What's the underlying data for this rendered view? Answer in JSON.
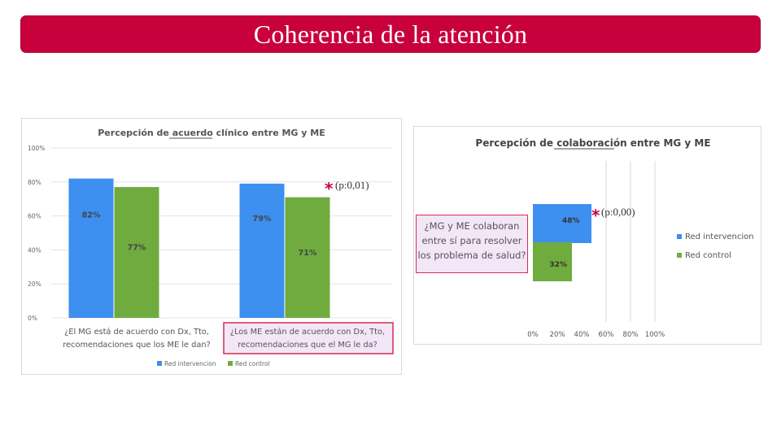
{
  "slide": {
    "title": "Coherencia de la atención"
  },
  "colors": {
    "title_bg": "#c8003c",
    "intervencion": "#3d8ff0",
    "control": "#6fab3e",
    "highlight_border": "#d32f4f",
    "highlight_fill": "#f3e6f7"
  },
  "annotations": {
    "left_star": "*",
    "left_p": "(p:0,01)",
    "right_star": "*",
    "right_p": "(p:0,00)"
  },
  "chart_data": [
    {
      "type": "bar",
      "title": "Percepción de acuerdo clínico entre MG y ME",
      "categories": [
        "¿El MG está de acuerdo con Dx, Tto, recomendaciones que los ME le dan?",
        "¿Los ME están de acuerdo con Dx, Tto, recomendaciones que el MG le da?"
      ],
      "category_lines": [
        [
          "¿El MG está de acuerdo con Dx, Tto,",
          "recomendaciones que los ME le dan?"
        ],
        [
          "¿Los ME están de acuerdo con Dx, Tto,",
          "recomendaciones que el MG le da?"
        ]
      ],
      "series": [
        {
          "name": "Red intervencion",
          "values": [
            82,
            79
          ],
          "labels": [
            "82%",
            "79%"
          ]
        },
        {
          "name": "Red control",
          "values": [
            77,
            71
          ],
          "labels": [
            "77%",
            "71%"
          ]
        }
      ],
      "y_ticks": [
        "0%",
        "20%",
        "40%",
        "60%",
        "80%",
        "100%"
      ],
      "ylim": [
        0,
        100
      ],
      "legend": "bottom",
      "grid": true
    },
    {
      "type": "bar",
      "orientation": "horizontal",
      "title": "Percepción de colaboración entre MG y ME",
      "categories": [
        "¿MG y ME colaboran entre sí para resolver los problema de salud?"
      ],
      "category_lines": [
        "¿MG y ME colaboran",
        "entre sí para resolver",
        "los problema de salud?"
      ],
      "series": [
        {
          "name": "Red intervencion",
          "values": [
            48
          ],
          "labels": [
            "48%"
          ]
        },
        {
          "name": "Red control",
          "values": [
            32
          ],
          "labels": [
            "32%"
          ]
        }
      ],
      "x_ticks": [
        "0%",
        "20%",
        "40%",
        "60%",
        "80%",
        "100%"
      ],
      "xlim": [
        0,
        100
      ],
      "legend": "right",
      "grid": true
    }
  ]
}
